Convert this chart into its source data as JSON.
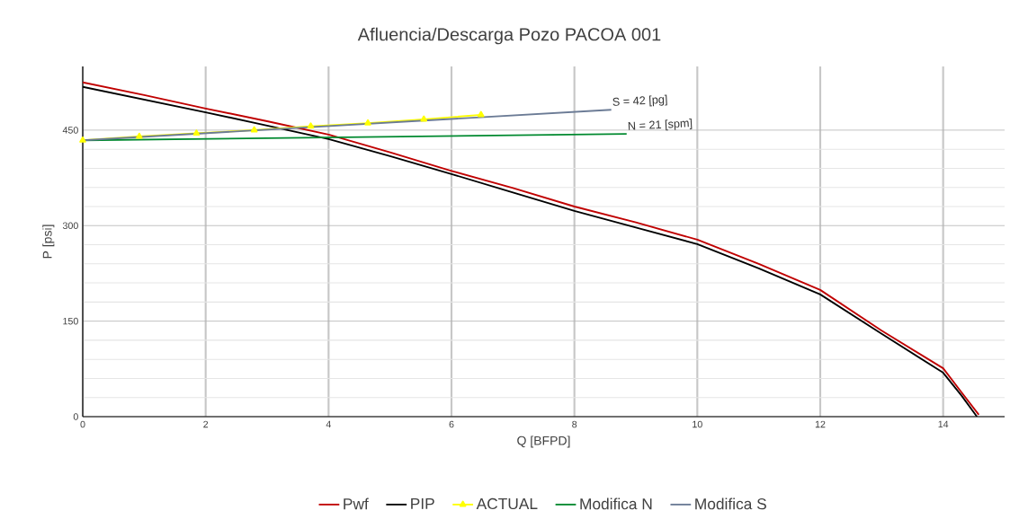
{
  "chart_data": {
    "type": "line",
    "title": "Afluencia/Descarga Pozo PACOA 001",
    "xlabel": "Q [BFPD]",
    "ylabel": "P [psi]",
    "xlim": [
      0,
      15
    ],
    "ylim": [
      0,
      550
    ],
    "xticks": [
      0,
      2,
      4,
      6,
      8,
      10,
      12,
      14
    ],
    "yticks": [
      0,
      150,
      300,
      450
    ],
    "grid": true,
    "legend": "bottom",
    "line_style": "solid",
    "series": [
      {
        "name": "Pwf",
        "color": "#c00000",
        "x": [
          0,
          1,
          2,
          3,
          4,
          5,
          6,
          7,
          8,
          9,
          10,
          11,
          12,
          13,
          14,
          14.3,
          14.58
        ],
        "values": [
          525,
          505,
          484,
          464,
          443,
          415,
          386,
          359,
          330,
          305,
          278,
          240,
          199,
          135,
          76,
          38,
          3
        ]
      },
      {
        "name": "PIP",
        "color": "#000000",
        "x": [
          0,
          1,
          2,
          3,
          4,
          5,
          6,
          7,
          8,
          9,
          10,
          11,
          12,
          13,
          14,
          14.3,
          14.55
        ],
        "values": [
          518,
          498,
          478,
          457,
          436,
          409,
          381,
          352,
          323,
          297,
          271,
          233,
          192,
          130,
          69,
          33,
          0
        ]
      },
      {
        "name": "ACTUAL",
        "color": "#ffff00",
        "marker": "triangle",
        "x": [
          0,
          0.92,
          1.85,
          2.79,
          3.71,
          4.64,
          5.55,
          6.48
        ],
        "values": [
          434,
          440,
          445,
          450,
          456,
          461,
          467,
          474
        ]
      },
      {
        "name": "Modifica N",
        "color": "#00892f",
        "x": [
          0,
          8.85
        ],
        "values": [
          434,
          444
        ]
      },
      {
        "name": "Modifica S",
        "color": "#6b7b95",
        "x": [
          0,
          8.6
        ],
        "values": [
          434,
          482
        ]
      }
    ],
    "annotations": [
      {
        "text": "S = 42 [pg]",
        "x": 8.6,
        "y": 482
      },
      {
        "text": "N = 21 [spm]",
        "x": 8.85,
        "y": 444
      }
    ]
  }
}
